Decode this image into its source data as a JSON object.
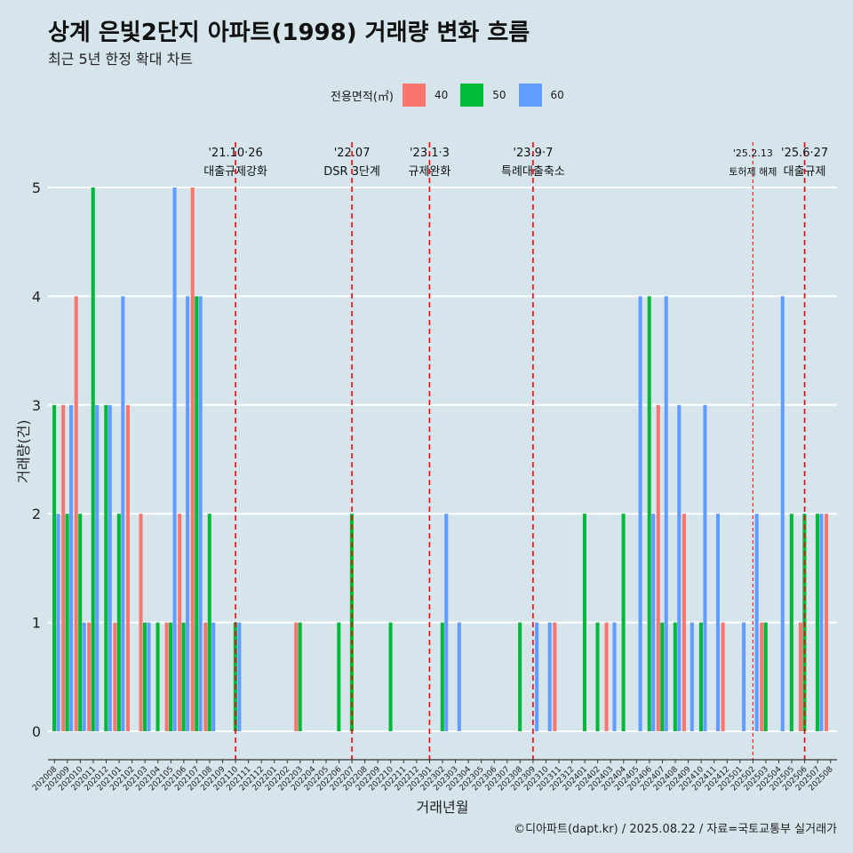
{
  "title": "상계 은빛2단지 아파트(1998) 거래량 변화 흐름",
  "subtitle": "최근 5년 한정 확대 차트",
  "caption": "©디아파트(dapt.kr) / 2025.08.22 / 자료=국토교통부 실거래가",
  "legend": {
    "title": "전용면적(㎡)",
    "items": [
      {
        "label": "40",
        "color": "#f8766d"
      },
      {
        "label": "50",
        "color": "#00ba38"
      },
      {
        "label": "60",
        "color": "#619cff"
      }
    ]
  },
  "chart_data": {
    "type": "bar",
    "xlabel": "거래년월",
    "ylabel": "거래량(건)",
    "ylim": [
      0,
      5
    ],
    "yticks": [
      0,
      1,
      2,
      3,
      4,
      5
    ],
    "categories": [
      "202008",
      "202009",
      "202010",
      "202011",
      "202012",
      "202101",
      "202102",
      "202103",
      "202104",
      "202105",
      "202106",
      "202107",
      "202108",
      "202109",
      "202110",
      "202111",
      "202112",
      "202201",
      "202202",
      "202203",
      "202204",
      "202205",
      "202206",
      "202207",
      "202208",
      "202209",
      "202210",
      "202211",
      "202212",
      "202301",
      "202302",
      "202303",
      "202304",
      "202305",
      "202306",
      "202307",
      "202308",
      "202309",
      "202310",
      "202311",
      "202312",
      "202401",
      "202402",
      "202403",
      "202404",
      "202405",
      "202406",
      "202407",
      "202408",
      "202409",
      "202410",
      "202411",
      "202412",
      "202501",
      "202502",
      "202503",
      "202504",
      "202505",
      "202506",
      "202507",
      "202508"
    ],
    "series": [
      {
        "name": "40",
        "color": "#f8766d",
        "values": [
          0,
          3,
          4,
          1,
          0,
          1,
          3,
          2,
          0,
          1,
          2,
          5,
          1,
          0,
          0,
          0,
          0,
          0,
          0,
          1,
          0,
          0,
          0,
          0,
          0,
          0,
          0,
          0,
          0,
          0,
          0,
          0,
          0,
          0,
          0,
          0,
          0,
          0,
          0,
          1,
          0,
          0,
          0,
          1,
          0,
          0,
          0,
          3,
          0,
          2,
          0,
          0,
          1,
          0,
          0,
          1,
          0,
          0,
          1,
          0,
          2
        ]
      },
      {
        "name": "50",
        "color": "#00ba38",
        "values": [
          3,
          2,
          2,
          5,
          3,
          2,
          0,
          1,
          1,
          1,
          1,
          4,
          2,
          0,
          1,
          0,
          0,
          0,
          0,
          1,
          0,
          0,
          1,
          2,
          0,
          0,
          1,
          0,
          0,
          0,
          1,
          0,
          0,
          0,
          0,
          0,
          1,
          0,
          0,
          0,
          0,
          2,
          1,
          0,
          2,
          0,
          4,
          1,
          1,
          0,
          1,
          0,
          0,
          0,
          0,
          1,
          0,
          2,
          2,
          2,
          0
        ]
      },
      {
        "name": "60",
        "color": "#619cff",
        "values": [
          2,
          3,
          1,
          3,
          3,
          4,
          0,
          1,
          0,
          5,
          4,
          4,
          1,
          0,
          1,
          0,
          0,
          0,
          0,
          0,
          0,
          0,
          0,
          0,
          0,
          0,
          0,
          0,
          0,
          0,
          2,
          1,
          0,
          0,
          0,
          0,
          0,
          1,
          1,
          0,
          0,
          0,
          0,
          1,
          0,
          4,
          2,
          4,
          3,
          1,
          3,
          2,
          0,
          1,
          2,
          0,
          4,
          0,
          0,
          2,
          0
        ]
      }
    ],
    "events": [
      {
        "after": "202110",
        "date": "'21.10·26",
        "label": "대출규제강화",
        "style": "major"
      },
      {
        "after": "202207",
        "date": "'22.07",
        "label": "DSR 3단계",
        "style": "major"
      },
      {
        "after": "202301",
        "date": "'23.1·3",
        "label": "규제완화",
        "style": "major"
      },
      {
        "after": "202309",
        "date": "'23.9·7",
        "label": "특례대출축소",
        "style": "major"
      },
      {
        "after": "202502",
        "date": "'25.2.13",
        "label": "토허제 해제",
        "style": "minor"
      },
      {
        "after": "202506",
        "date": "'25.6·27",
        "label": "대출규제",
        "style": "major"
      }
    ],
    "grid": "horizontal"
  }
}
